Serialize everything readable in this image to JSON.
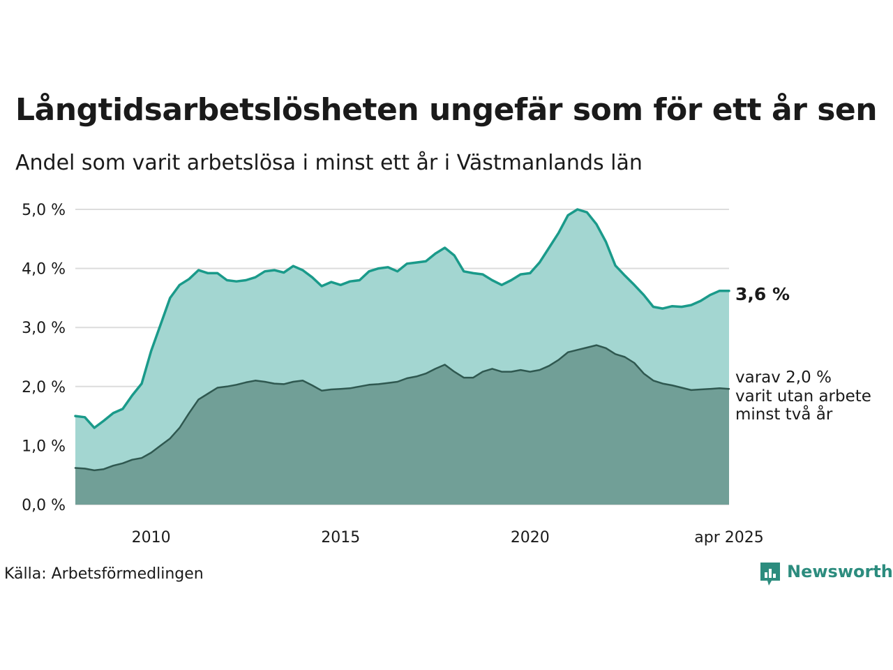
{
  "title": "Långtidsarbetslösheten ungefär som för ett år sen",
  "subtitle": "Andel som varit arbetslösa i minst ett år i Västmanlands län",
  "source": "Källa: Arbetsförmedlingen",
  "brand": {
    "name": "Newsworthy",
    "icon": "newsworthy-logo-icon",
    "color": "#2c8c7e"
  },
  "colors": {
    "series1_line": "#1a9a8a",
    "series1_fill": "#a3d6d1",
    "series2_line": "#2f5850",
    "series2_fill": "#719f97",
    "grid": "#dcdcdc"
  },
  "chart_data": {
    "type": "area",
    "ylim": [
      0,
      5
    ],
    "grid": true,
    "y_ticks": [
      "0,0 %",
      "1,0 %",
      "2,0 %",
      "3,0 %",
      "4,0 %",
      "5,0 %"
    ],
    "x_ticks": [
      "2010",
      "2015",
      "2020",
      "apr 2025"
    ],
    "x_range": [
      "2008-01",
      "2025-04"
    ],
    "series": [
      {
        "values": [
          [
            "2008-01",
            1.5
          ],
          [
            "2008-04",
            1.48
          ],
          [
            "2008-07",
            1.3
          ],
          [
            "2008-10",
            1.42
          ],
          [
            "2009-01",
            1.55
          ],
          [
            "2009-04",
            1.62
          ],
          [
            "2009-07",
            1.85
          ],
          [
            "2009-10",
            2.05
          ],
          [
            "2010-01",
            2.6
          ],
          [
            "2010-04",
            3.05
          ],
          [
            "2010-07",
            3.5
          ],
          [
            "2010-10",
            3.72
          ],
          [
            "2011-01",
            3.82
          ],
          [
            "2011-04",
            3.97
          ],
          [
            "2011-07",
            3.92
          ],
          [
            "2011-10",
            3.92
          ],
          [
            "2012-01",
            3.8
          ],
          [
            "2012-04",
            3.78
          ],
          [
            "2012-07",
            3.8
          ],
          [
            "2012-10",
            3.85
          ],
          [
            "2013-01",
            3.95
          ],
          [
            "2013-04",
            3.97
          ],
          [
            "2013-07",
            3.93
          ],
          [
            "2013-10",
            4.04
          ],
          [
            "2014-01",
            3.97
          ],
          [
            "2014-04",
            3.85
          ],
          [
            "2014-07",
            3.7
          ],
          [
            "2014-10",
            3.77
          ],
          [
            "2015-01",
            3.72
          ],
          [
            "2015-04",
            3.78
          ],
          [
            "2015-07",
            3.8
          ],
          [
            "2015-10",
            3.95
          ],
          [
            "2016-01",
            4.0
          ],
          [
            "2016-04",
            4.02
          ],
          [
            "2016-07",
            3.95
          ],
          [
            "2016-10",
            4.08
          ],
          [
            "2017-01",
            4.1
          ],
          [
            "2017-04",
            4.12
          ],
          [
            "2017-07",
            4.25
          ],
          [
            "2017-10",
            4.35
          ],
          [
            "2018-01",
            4.22
          ],
          [
            "2018-04",
            3.95
          ],
          [
            "2018-07",
            3.92
          ],
          [
            "2018-10",
            3.9
          ],
          [
            "2019-01",
            3.8
          ],
          [
            "2019-04",
            3.72
          ],
          [
            "2019-07",
            3.8
          ],
          [
            "2019-10",
            3.9
          ],
          [
            "2020-01",
            3.92
          ],
          [
            "2020-04",
            4.1
          ],
          [
            "2020-07",
            4.35
          ],
          [
            "2020-10",
            4.6
          ],
          [
            "2021-01",
            4.9
          ],
          [
            "2021-04",
            5.0
          ],
          [
            "2021-07",
            4.95
          ],
          [
            "2021-10",
            4.75
          ],
          [
            "2022-01",
            4.45
          ],
          [
            "2022-04",
            4.05
          ],
          [
            "2022-07",
            3.88
          ],
          [
            "2022-10",
            3.72
          ],
          [
            "2023-01",
            3.55
          ],
          [
            "2023-04",
            3.35
          ],
          [
            "2023-07",
            3.32
          ],
          [
            "2023-10",
            3.36
          ],
          [
            "2024-01",
            3.35
          ],
          [
            "2024-04",
            3.38
          ],
          [
            "2024-07",
            3.45
          ],
          [
            "2024-10",
            3.55
          ],
          [
            "2025-01",
            3.62
          ],
          [
            "2025-04",
            3.62
          ]
        ]
      },
      {
        "values": [
          [
            "2008-01",
            0.62
          ],
          [
            "2008-04",
            0.61
          ],
          [
            "2008-07",
            0.58
          ],
          [
            "2008-10",
            0.6
          ],
          [
            "2009-01",
            0.66
          ],
          [
            "2009-04",
            0.7
          ],
          [
            "2009-07",
            0.76
          ],
          [
            "2009-10",
            0.79
          ],
          [
            "2010-01",
            0.88
          ],
          [
            "2010-04",
            1.0
          ],
          [
            "2010-07",
            1.12
          ],
          [
            "2010-10",
            1.3
          ],
          [
            "2011-01",
            1.55
          ],
          [
            "2011-04",
            1.78
          ],
          [
            "2011-07",
            1.88
          ],
          [
            "2011-10",
            1.98
          ],
          [
            "2012-01",
            2.0
          ],
          [
            "2012-04",
            2.03
          ],
          [
            "2012-07",
            2.07
          ],
          [
            "2012-10",
            2.1
          ],
          [
            "2013-01",
            2.08
          ],
          [
            "2013-04",
            2.05
          ],
          [
            "2013-07",
            2.04
          ],
          [
            "2013-10",
            2.08
          ],
          [
            "2014-01",
            2.1
          ],
          [
            "2014-04",
            2.02
          ],
          [
            "2014-07",
            1.93
          ],
          [
            "2014-10",
            1.95
          ],
          [
            "2015-01",
            1.96
          ],
          [
            "2015-04",
            1.97
          ],
          [
            "2015-07",
            2.0
          ],
          [
            "2015-10",
            2.03
          ],
          [
            "2016-01",
            2.04
          ],
          [
            "2016-04",
            2.06
          ],
          [
            "2016-07",
            2.08
          ],
          [
            "2016-10",
            2.14
          ],
          [
            "2017-01",
            2.17
          ],
          [
            "2017-04",
            2.22
          ],
          [
            "2017-07",
            2.3
          ],
          [
            "2017-10",
            2.37
          ],
          [
            "2018-01",
            2.25
          ],
          [
            "2018-04",
            2.15
          ],
          [
            "2018-07",
            2.15
          ],
          [
            "2018-10",
            2.25
          ],
          [
            "2019-01",
            2.3
          ],
          [
            "2019-04",
            2.25
          ],
          [
            "2019-07",
            2.25
          ],
          [
            "2019-10",
            2.28
          ],
          [
            "2020-01",
            2.25
          ],
          [
            "2020-04",
            2.28
          ],
          [
            "2020-07",
            2.35
          ],
          [
            "2020-10",
            2.45
          ],
          [
            "2021-01",
            2.58
          ],
          [
            "2021-04",
            2.62
          ],
          [
            "2021-07",
            2.66
          ],
          [
            "2021-10",
            2.7
          ],
          [
            "2022-01",
            2.65
          ],
          [
            "2022-04",
            2.55
          ],
          [
            "2022-07",
            2.5
          ],
          [
            "2022-10",
            2.4
          ],
          [
            "2023-01",
            2.22
          ],
          [
            "2023-04",
            2.1
          ],
          [
            "2023-07",
            2.05
          ],
          [
            "2023-10",
            2.02
          ],
          [
            "2024-01",
            1.98
          ],
          [
            "2024-04",
            1.94
          ],
          [
            "2024-07",
            1.95
          ],
          [
            "2024-10",
            1.96
          ],
          [
            "2025-01",
            1.97
          ],
          [
            "2025-04",
            1.96
          ]
        ]
      }
    ],
    "annotations": {
      "end_label_primary": "3,6 %",
      "end_label_secondary": [
        "varav 2,0 %",
        "varit utan arbete",
        "minst två år"
      ]
    }
  }
}
